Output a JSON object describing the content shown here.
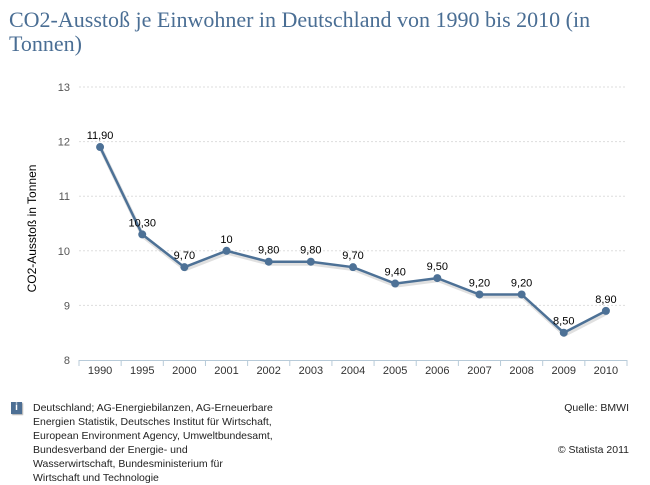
{
  "title": "CO2-Ausstoß je Einwohner in Deutschland von 1990 bis 2010 (in Tonnen)",
  "chart_data": {
    "type": "line",
    "title": "CO2-Ausstoß je Einwohner in Deutschland von 1990 bis 2010 (in Tonnen)",
    "ylabel": "CO2-Ausstoß in Tonnen",
    "xlabel": "",
    "ylim": [
      8,
      13
    ],
    "yticks": [
      "8",
      "9",
      "10",
      "11",
      "12",
      "13"
    ],
    "grid": true,
    "categories": [
      "1990",
      "1995",
      "2000",
      "2001",
      "2002",
      "2003",
      "2004",
      "2005",
      "2006",
      "2007",
      "2008",
      "2009",
      "2010"
    ],
    "values": [
      11.9,
      10.3,
      9.7,
      10,
      9.8,
      9.8,
      9.7,
      9.4,
      9.5,
      9.2,
      9.2,
      8.5,
      8.9
    ],
    "labels": [
      "11,90",
      "10,30",
      "9,70",
      "10",
      "9,80",
      "9,80",
      "9,70",
      "9,40",
      "9,50",
      "9,20",
      "9,20",
      "8,50",
      "8,90"
    ],
    "color": "#4d7196"
  },
  "footer": {
    "info_icon": "i",
    "sources": [
      "Deutschland; AG-Energiebilanzen, AG-Erneuerbare",
      "Energien Statistik, Deutsches Institut für Wirtschaft,",
      "European Environment Agency, Umweltbundesamt,",
      "Bundesverband der Energie- und",
      "Wasserwirtschaft, Bundesministerium für",
      "Wirtschaft und Technologie"
    ],
    "quelle": "Quelle: BMWI",
    "copyright": "© Statista 2011"
  }
}
